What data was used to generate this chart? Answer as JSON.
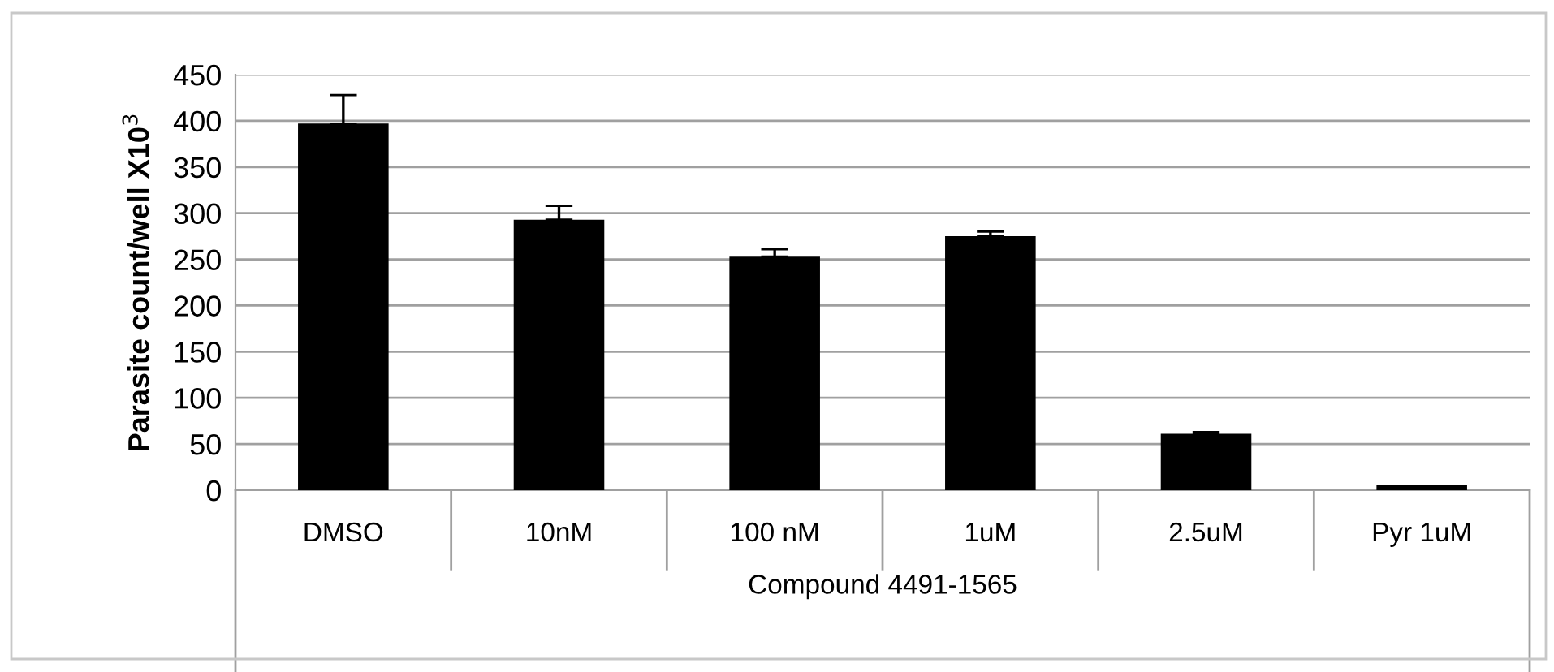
{
  "chart_data": {
    "type": "bar",
    "ylabel": "Parasite count/well X10$^{3}$",
    "xlabel": "Compound 4491-1565",
    "categories": [
      "DMSO",
      "10nM",
      "100 nM",
      "1uM",
      "2.5uM",
      "Pyr 1uM"
    ],
    "values": [
      397,
      293,
      253,
      275,
      61,
      6
    ],
    "errors": [
      31,
      15,
      8,
      5,
      2,
      null
    ],
    "color": "#000000",
    "ylim": [
      0,
      450
    ],
    "yticks": [
      0,
      50,
      100,
      150,
      200,
      250,
      300,
      350,
      400,
      450
    ],
    "grid": "y"
  }
}
